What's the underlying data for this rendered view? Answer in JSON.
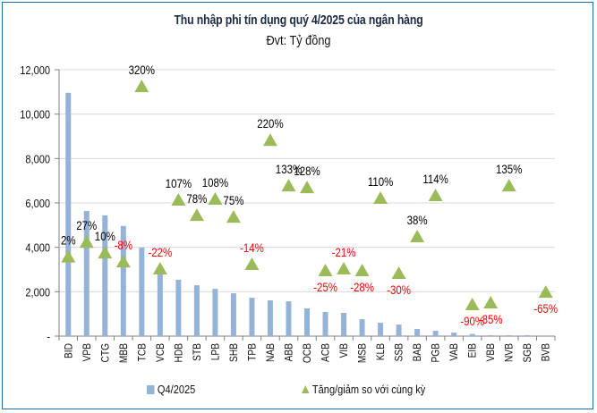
{
  "chart_data": {
    "type": "bar",
    "title": "Thu nhập phi tín dụng quý 4/2025 của ngân hàng",
    "subtitle": "Đvt: Tỷ đồng",
    "xlabel": "",
    "ylabel": "",
    "ylim": [
      0,
      12000
    ],
    "yticks": [
      0,
      2000,
      4000,
      6000,
      8000,
      10000,
      12000
    ],
    "ytick_labels": [
      "-",
      "2,000",
      "4,000",
      "6,000",
      "8,000",
      "10,000",
      "12,000"
    ],
    "grid": true,
    "legend_position": "bottom",
    "categories": [
      "BID",
      "VPB",
      "CTG",
      "MBB",
      "TCB",
      "VCB",
      "HDB",
      "STB",
      "LPB",
      "SHB",
      "TPB",
      "NAB",
      "ABB",
      "OCB",
      "ACB",
      "VIB",
      "MSB",
      "KLB",
      "SSB",
      "BAB",
      "PGB",
      "VAB",
      "EIB",
      "VBB",
      "NVB",
      "SGB",
      "BVB"
    ],
    "series": [
      {
        "name": "Q4/2025",
        "type": "bar",
        "color": "#95b3d7",
        "values": [
          10960,
          5640,
          5440,
          4960,
          3990,
          2820,
          2540,
          2290,
          2130,
          1930,
          1730,
          1610,
          1570,
          1250,
          1090,
          1050,
          760,
          600,
          520,
          320,
          240,
          160,
          100,
          40,
          40,
          40,
          0
        ]
      },
      {
        "name": "Tăng/giảm so với cùng kỳ",
        "type": "marker",
        "marker": "triangle",
        "color": "#9bbb59",
        "marker_y": [
          3600,
          4260,
          3780,
          3380,
          11270,
          3060,
          6160,
          5470,
          6200,
          5390,
          3260,
          8850,
          6800,
          6720,
          2980,
          3060,
          2980,
          6240,
          2860,
          4510,
          6360,
          null,
          1450,
          1530,
          6800,
          null,
          2010
        ],
        "labels": [
          "2%",
          "27%",
          "10%",
          "-8%",
          "320%",
          "-22%",
          "107%",
          "78%",
          "108%",
          "75%",
          "-14%",
          "220%",
          "133%",
          "128%",
          "-25%",
          "-21%",
          "-28%",
          "110%",
          "-30%",
          "38%",
          "114%",
          null,
          "-90%",
          "-85%",
          "135%",
          null,
          "-65%"
        ],
        "label_position": [
          "above",
          "above",
          "above",
          "above",
          "above",
          "above",
          "above",
          "above",
          "above",
          "above",
          "above",
          "above",
          "above",
          "above",
          "below",
          "above",
          "below",
          "above",
          "below",
          "above",
          "above",
          null,
          "below",
          "below",
          "above",
          null,
          "below"
        ]
      }
    ],
    "positive_label_color": "#000000",
    "negative_label_color": "#ff0000"
  },
  "legend": {
    "items": [
      {
        "label": "Q4/2025",
        "symbol": "square"
      },
      {
        "label": "Tăng/giảm so với cùng kỳ",
        "symbol": "triangle"
      }
    ]
  }
}
